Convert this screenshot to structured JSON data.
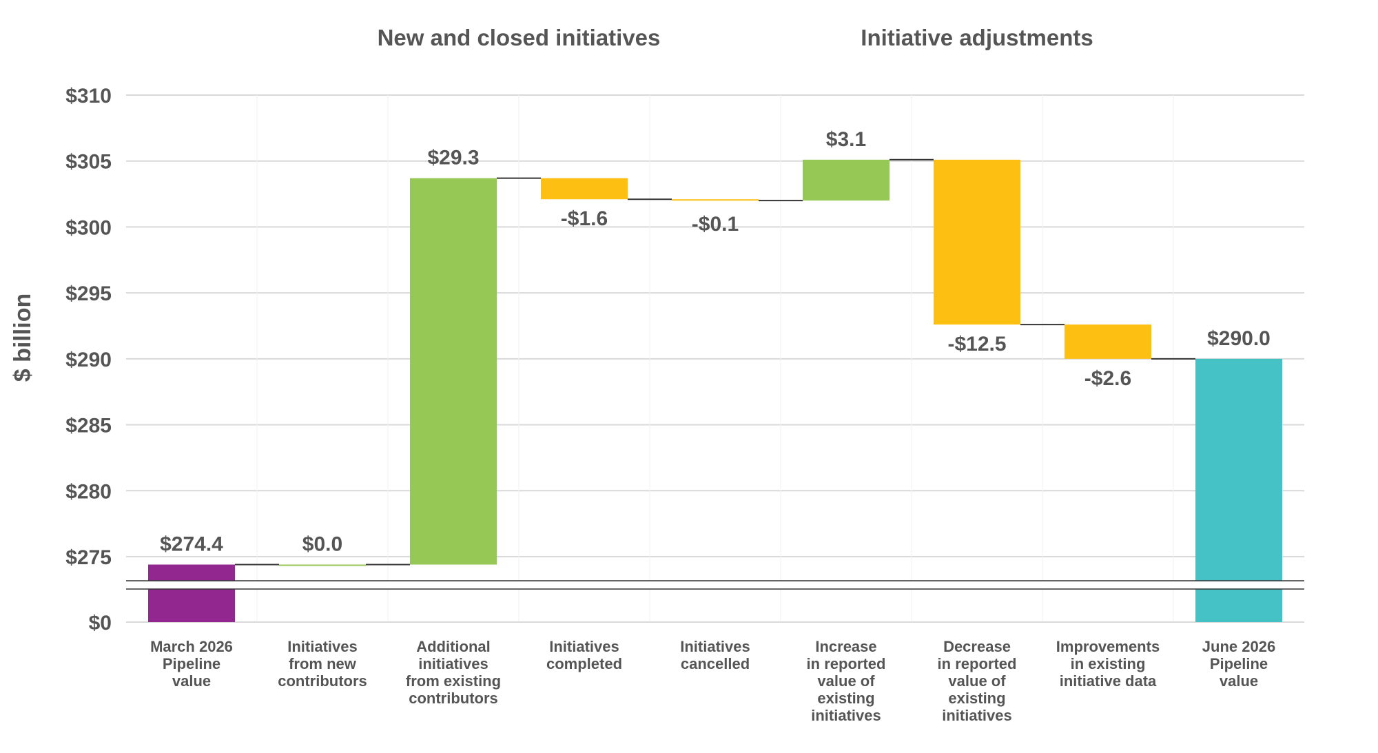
{
  "chart_data": {
    "type": "waterfall",
    "title": "",
    "ylabel": "$ billion",
    "ylim": [
      273,
      310
    ],
    "axis_break": {
      "below": 275,
      "base_label": "$0"
    },
    "yticks": [
      {
        "value": 310,
        "label": "$310"
      },
      {
        "value": 305,
        "label": "$305"
      },
      {
        "value": 300,
        "label": "$300"
      },
      {
        "value": 295,
        "label": "$295"
      },
      {
        "value": 290,
        "label": "$290"
      },
      {
        "value": 285,
        "label": "$285"
      },
      {
        "value": 280,
        "label": "$280"
      },
      {
        "value": 275,
        "label": "$275"
      }
    ],
    "group_titles": [
      {
        "label": "New and closed initiatives",
        "from": 1,
        "to": 4
      },
      {
        "label": "Initiative adjustments",
        "from": 5,
        "to": 7
      }
    ],
    "colors": {
      "total_start": "#92278f",
      "increase": "#96c856",
      "decrease": "#fdbf12",
      "total_end": "#45c2c5",
      "connector": "#333333",
      "grid": "#d9d9d9"
    },
    "categories": [
      [
        "March 2026",
        "Pipeline",
        "value"
      ],
      [
        "Initiatives",
        "from new",
        "contributors"
      ],
      [
        "Additional",
        "initiatives",
        "from existing",
        "contributors"
      ],
      [
        "Initiatives",
        "completed"
      ],
      [
        "Initiatives",
        "cancelled"
      ],
      [
        "Increase",
        "in reported",
        "value of",
        "existing",
        "initiatives"
      ],
      [
        "Decrease",
        "in reported",
        "value of",
        "existing",
        "initiatives"
      ],
      [
        "Improvements",
        "in existing",
        "initiative data"
      ],
      [
        "June 2026",
        "Pipeline",
        "value"
      ]
    ],
    "steps": [
      {
        "kind": "total_start",
        "value": 274.4,
        "label": "$274.4"
      },
      {
        "kind": "increase",
        "value": 0.0,
        "label": "$0.0"
      },
      {
        "kind": "increase",
        "value": 29.3,
        "label": "$29.3"
      },
      {
        "kind": "decrease",
        "value": -1.6,
        "label": "-$1.6"
      },
      {
        "kind": "decrease",
        "value": -0.1,
        "label": "-$0.1"
      },
      {
        "kind": "increase",
        "value": 3.1,
        "label": "$3.1"
      },
      {
        "kind": "decrease",
        "value": -12.5,
        "label": "-$12.5"
      },
      {
        "kind": "decrease",
        "value": -2.6,
        "label": "-$2.6"
      },
      {
        "kind": "total_end",
        "value": 290.0,
        "label": "$290.0"
      }
    ]
  }
}
